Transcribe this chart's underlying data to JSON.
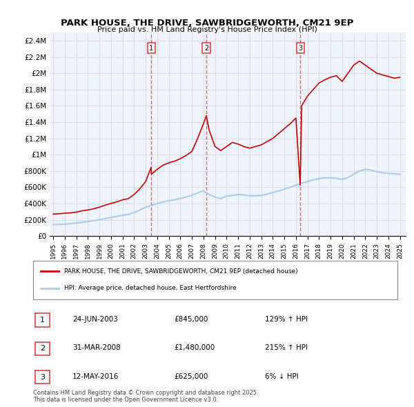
{
  "title": "PARK HOUSE, THE DRIVE, SAWBRIDGEWORTH, CM21 9EP",
  "subtitle": "Price paid vs. HM Land Registry's House Price Index (HPI)",
  "ylim": [
    0,
    2500000
  ],
  "yticks": [
    0,
    200000,
    400000,
    600000,
    800000,
    1000000,
    1200000,
    1400000,
    1600000,
    1800000,
    2000000,
    2200000,
    2400000
  ],
  "ytick_labels": [
    "£0",
    "£200K",
    "£400K",
    "£600K",
    "£800K",
    "£1M",
    "£1.2M",
    "£1.4M",
    "£1.6M",
    "£1.8M",
    "£2M",
    "£2.2M",
    "£2.4M"
  ],
  "xlim_start": 1995,
  "xlim_end": 2025.5,
  "sale_dates": [
    2003.48,
    2008.25,
    2016.37
  ],
  "sale_labels": [
    "1",
    "2",
    "3"
  ],
  "sale_prices": [
    845000,
    1480000,
    625000
  ],
  "red_line_color": "#cc0000",
  "blue_line_color": "#aaccee",
  "vline_color": "#dd4444",
  "grid_color": "#dddddd",
  "bg_color": "#f0f4ff",
  "legend_entries": [
    "PARK HOUSE, THE DRIVE, SAWBRIDGEWORTH, CM21 9EP (detached house)",
    "HPI: Average price, detached house, East Hertfordshire"
  ],
  "table_rows": [
    {
      "num": "1",
      "date": "24-JUN-2003",
      "price": "£845,000",
      "change": "129% ↑ HPI"
    },
    {
      "num": "2",
      "date": "31-MAR-2008",
      "price": "£1,480,000",
      "change": "215% ↑ HPI"
    },
    {
      "num": "3",
      "date": "12-MAY-2016",
      "price": "£625,000",
      "change": "6% ↓ HPI"
    }
  ],
  "footer_text": "Contains HM Land Registry data © Crown copyright and database right 2025.\nThis data is licensed under the Open Government Licence v3.0.",
  "hpi_red_data": {
    "x": [
      1995.0,
      1995.5,
      1996.0,
      1996.5,
      1997.0,
      1997.5,
      1998.0,
      1998.5,
      1999.0,
      1999.5,
      2000.0,
      2000.5,
      2001.0,
      2001.5,
      2002.0,
      2002.5,
      2003.0,
      2003.48,
      2003.5,
      2004.0,
      2004.5,
      2005.0,
      2005.5,
      2006.0,
      2006.5,
      2007.0,
      2007.5,
      2008.0,
      2008.25,
      2008.5,
      2009.0,
      2009.5,
      2010.0,
      2010.5,
      2011.0,
      2011.5,
      2012.0,
      2012.5,
      2013.0,
      2013.5,
      2014.0,
      2014.5,
      2015.0,
      2015.5,
      2016.0,
      2016.37,
      2016.5,
      2017.0,
      2017.5,
      2018.0,
      2018.5,
      2019.0,
      2019.5,
      2020.0,
      2020.5,
      2021.0,
      2021.5,
      2022.0,
      2022.5,
      2023.0,
      2023.5,
      2024.0,
      2024.5,
      2025.0
    ],
    "y": [
      270000,
      275000,
      280000,
      285000,
      295000,
      310000,
      320000,
      335000,
      355000,
      380000,
      400000,
      420000,
      445000,
      460000,
      510000,
      580000,
      670000,
      845000,
      760000,
      820000,
      870000,
      900000,
      920000,
      950000,
      990000,
      1040000,
      1200000,
      1380000,
      1480000,
      1300000,
      1100000,
      1050000,
      1100000,
      1150000,
      1130000,
      1100000,
      1080000,
      1100000,
      1120000,
      1160000,
      1200000,
      1260000,
      1320000,
      1380000,
      1450000,
      625000,
      1600000,
      1720000,
      1800000,
      1880000,
      1920000,
      1950000,
      1970000,
      1900000,
      2000000,
      2100000,
      2150000,
      2100000,
      2050000,
      2000000,
      1980000,
      1960000,
      1940000,
      1950000
    ]
  },
  "hpi_blue_data": {
    "x": [
      1995.0,
      1995.5,
      1996.0,
      1996.5,
      1997.0,
      1997.5,
      1998.0,
      1998.5,
      1999.0,
      1999.5,
      2000.0,
      2000.5,
      2001.0,
      2001.5,
      2002.0,
      2002.5,
      2003.0,
      2003.5,
      2004.0,
      2004.5,
      2005.0,
      2005.5,
      2006.0,
      2006.5,
      2007.0,
      2007.5,
      2008.0,
      2008.5,
      2009.0,
      2009.5,
      2010.0,
      2010.5,
      2011.0,
      2011.5,
      2012.0,
      2012.5,
      2013.0,
      2013.5,
      2014.0,
      2014.5,
      2015.0,
      2015.5,
      2016.0,
      2016.5,
      2017.0,
      2017.5,
      2018.0,
      2018.5,
      2019.0,
      2019.5,
      2020.0,
      2020.5,
      2021.0,
      2021.5,
      2022.0,
      2022.5,
      2023.0,
      2023.5,
      2024.0,
      2024.5,
      2025.0
    ],
    "y": [
      140000,
      143000,
      147000,
      152000,
      160000,
      170000,
      178000,
      188000,
      200000,
      215000,
      228000,
      242000,
      255000,
      265000,
      290000,
      320000,
      355000,
      375000,
      400000,
      420000,
      435000,
      445000,
      462000,
      480000,
      500000,
      530000,
      555000,
      510000,
      480000,
      460000,
      490000,
      500000,
      510000,
      505000,
      495000,
      495000,
      500000,
      515000,
      535000,
      555000,
      575000,
      600000,
      625000,
      650000,
      670000,
      690000,
      705000,
      715000,
      715000,
      710000,
      695000,
      720000,
      760000,
      800000,
      820000,
      810000,
      790000,
      775000,
      770000,
      765000,
      760000
    ]
  }
}
